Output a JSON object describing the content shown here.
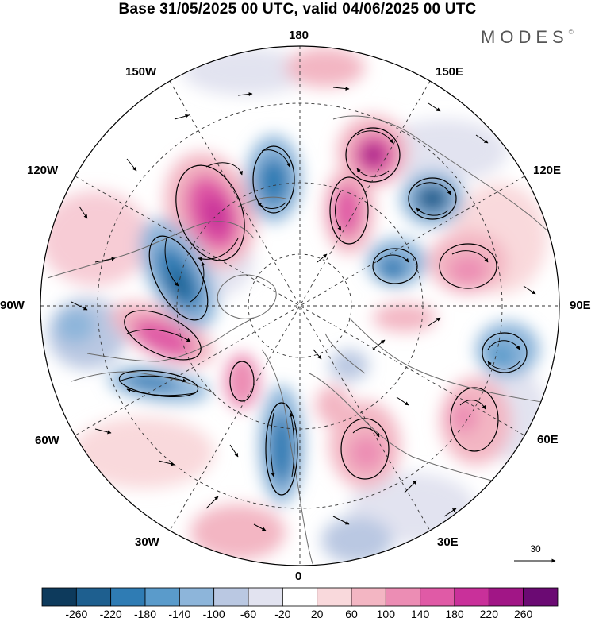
{
  "title": "Base 31/05/2025 00 UTC, valid 04/06/2025 00 UTC",
  "brand": {
    "name": "MODES",
    "mark": "©"
  },
  "longitude_labels": [
    {
      "id": "lon-180",
      "text": "180"
    },
    {
      "id": "lon-150e",
      "text": "150E"
    },
    {
      "id": "lon-120e",
      "text": "120E"
    },
    {
      "id": "lon-90e",
      "text": "90E"
    },
    {
      "id": "lon-60e",
      "text": "60E"
    },
    {
      "id": "lon-30e",
      "text": "30E"
    },
    {
      "id": "lon-0",
      "text": "0"
    },
    {
      "id": "lon-30w",
      "text": "30W"
    },
    {
      "id": "lon-60w",
      "text": "60W"
    },
    {
      "id": "lon-90w",
      "text": "90W"
    },
    {
      "id": "lon-120w",
      "text": "120W"
    },
    {
      "id": "lon-150w",
      "text": "150W"
    }
  ],
  "reference_vector": {
    "value": "30"
  },
  "colorbar": {
    "colors": [
      "#0d3a5c",
      "#1e5f8f",
      "#2f7cb4",
      "#5a9bcb",
      "#8db5da",
      "#bac8e2",
      "#e2e3f0",
      "#ffffff",
      "#f9d9dc",
      "#f3b6c3",
      "#ec8db4",
      "#e05aa6",
      "#c9309a",
      "#a11686",
      "#6b0a73"
    ],
    "tick_labels": [
      "-260",
      "-220",
      "-180",
      "-140",
      "-100",
      "-60",
      "-20",
      "20",
      "60",
      "100",
      "140",
      "180",
      "220",
      "260"
    ]
  },
  "colors": {
    "positive": "#e05aa6",
    "negative": "#2f7cb4",
    "coast": "#6b6b6b",
    "grid": "#333333"
  }
}
